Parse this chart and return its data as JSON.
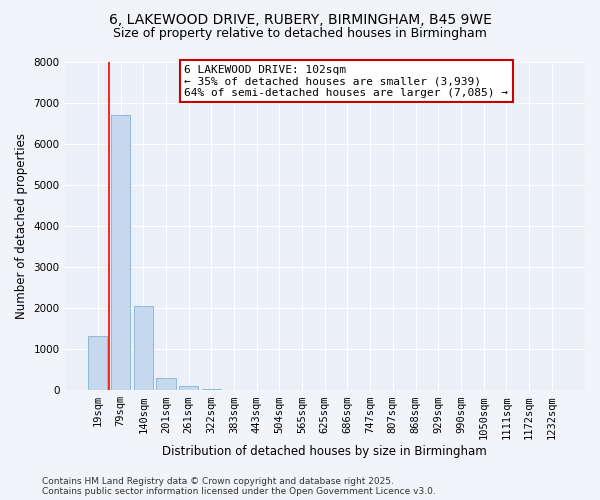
{
  "title_line1": "6, LAKEWOOD DRIVE, RUBERY, BIRMINGHAM, B45 9WE",
  "title_line2": "Size of property relative to detached houses in Birmingham",
  "xlabel": "Distribution of detached houses by size in Birmingham",
  "ylabel": "Number of detached properties",
  "bar_values": [
    1310,
    6700,
    2050,
    300,
    100,
    30,
    10,
    5,
    3,
    2,
    1,
    1,
    0,
    0,
    0,
    0,
    0,
    0,
    0,
    0,
    0
  ],
  "bar_labels": [
    "19sqm",
    "79sqm",
    "140sqm",
    "201sqm",
    "261sqm",
    "322sqm",
    "383sqm",
    "443sqm",
    "504sqm",
    "565sqm",
    "625sqm",
    "686sqm",
    "747sqm",
    "807sqm",
    "868sqm",
    "929sqm",
    "990sqm",
    "1050sqm",
    "1111sqm",
    "1172sqm",
    "1232sqm"
  ],
  "bar_color": "#c5d8ee",
  "bar_edgecolor": "#90b8d8",
  "background_color": "#f2f4fa",
  "plot_background": "#eaeff8",
  "red_line_x": 0.5,
  "annotation_text": "6 LAKEWOOD DRIVE: 102sqm\n← 35% of detached houses are smaller (3,939)\n64% of semi-detached houses are larger (7,085) →",
  "annotation_box_facecolor": "#ffffff",
  "annotation_box_edgecolor": "#cc0000",
  "ylim": [
    0,
    8000
  ],
  "yticks": [
    0,
    1000,
    2000,
    3000,
    4000,
    5000,
    6000,
    7000,
    8000
  ],
  "footer_line1": "Contains HM Land Registry data © Crown copyright and database right 2025.",
  "footer_line2": "Contains public sector information licensed under the Open Government Licence v3.0.",
  "title_fontsize": 10,
  "subtitle_fontsize": 9,
  "axis_label_fontsize": 8.5,
  "tick_fontsize": 7.5,
  "annotation_fontsize": 8,
  "footer_fontsize": 6.5
}
